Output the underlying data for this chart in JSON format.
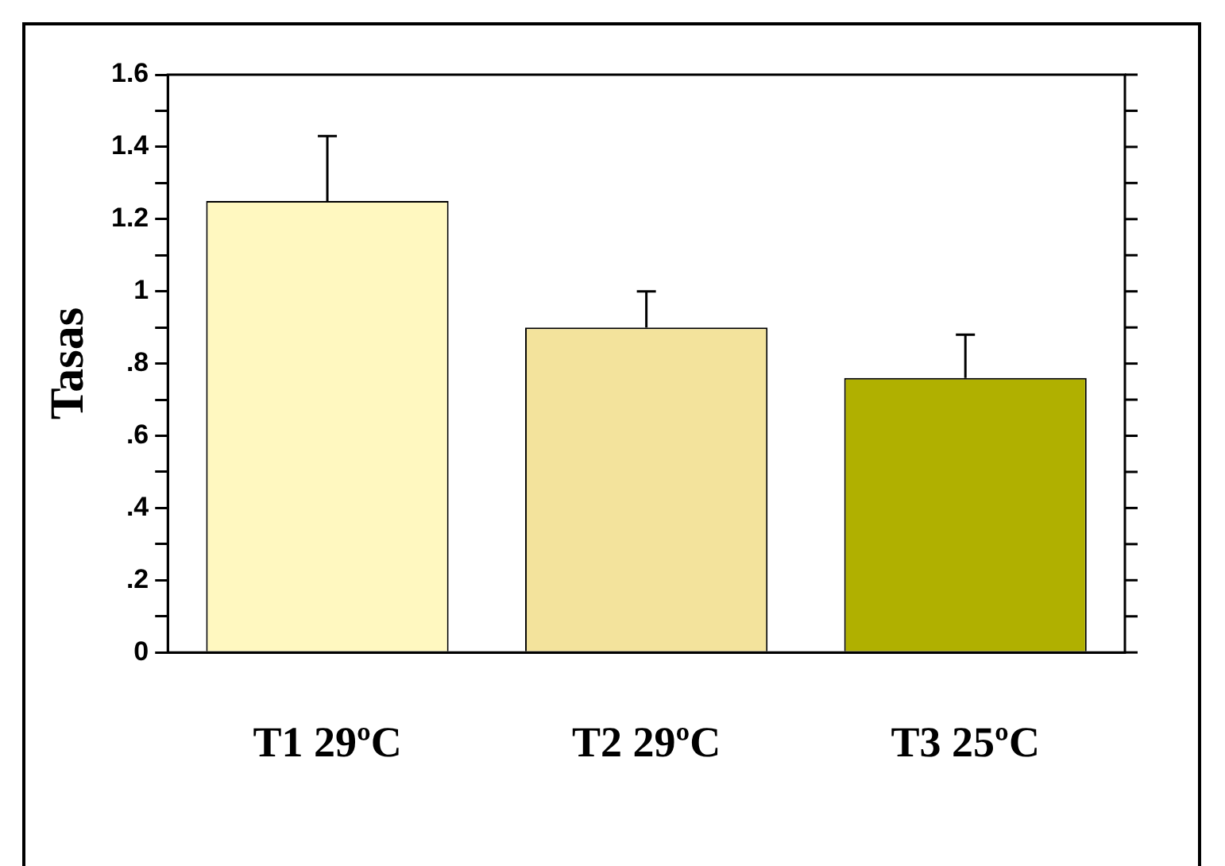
{
  "chart_data": {
    "type": "bar",
    "ylabel": "Tasas",
    "categories": [
      "T1 29ºC",
      "T2 29ºC",
      "T3 25ºC"
    ],
    "values": [
      1.25,
      0.9,
      0.76
    ],
    "colors": [
      "#fff8c0",
      "#f3e39c",
      "#b0b000"
    ],
    "errors": [
      [
        1.25,
        1.43
      ],
      [
        0.9,
        1.0
      ],
      [
        0.76,
        0.88
      ]
    ],
    "ylim": [
      0,
      1.6
    ],
    "yticks": [
      0,
      {
        "value": 0.1,
        "label": null
      },
      {
        "value": 0.2,
        "label": ".2"
      },
      {
        "value": 0.3,
        "label": null
      },
      {
        "value": 0.4,
        "label": ".4"
      },
      {
        "value": 0.5,
        "label": null
      },
      {
        "value": 0.6,
        "label": ".6"
      },
      {
        "value": 0.7,
        "label": null
      },
      {
        "value": 0.8,
        "label": ".8"
      },
      {
        "value": 0.9,
        "label": null
      },
      1,
      {
        "value": 1.1,
        "label": null
      },
      1.2,
      {
        "value": 1.3,
        "label": null
      },
      1.4,
      {
        "value": 1.5,
        "label": null
      },
      1.6
    ],
    "grid": false,
    "legend": false
  }
}
